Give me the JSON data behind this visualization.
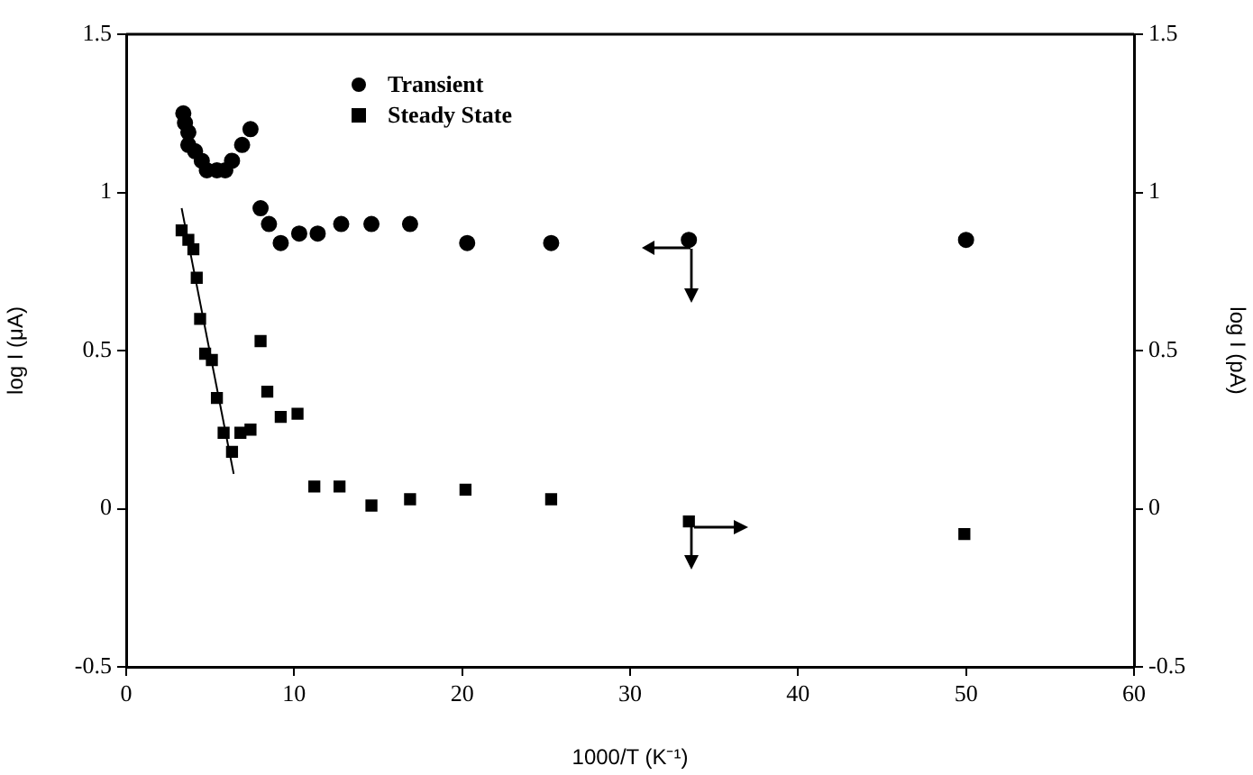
{
  "chart_data": {
    "type": "scatter",
    "xlabel": "1000/T (K⁻¹)",
    "ylabel": "log I (μA)",
    "y2label": "log I (pA)",
    "xlim": [
      0,
      60
    ],
    "xticks": [
      0,
      10,
      20,
      30,
      40,
      50,
      60
    ],
    "ylim": [
      -0.5,
      1.5
    ],
    "yticks": [
      -0.5,
      0,
      0.5,
      1,
      1.5
    ],
    "y2lim": [
      -0.5,
      1.5
    ],
    "y2ticks": [
      -0.5,
      0,
      0.5,
      1,
      1.5
    ],
    "grid": false,
    "legend": "top left",
    "series": [
      {
        "name": "Transient",
        "type": "scatter",
        "marker": "circle",
        "color": "#000000",
        "x": [
          3.4,
          3.5,
          3.7,
          3.7,
          4.1,
          4.5,
          4.8,
          5.4,
          5.9,
          6.3,
          6.9,
          7.4,
          8.0,
          8.5,
          9.2,
          10.3,
          11.4,
          12.8,
          14.6,
          16.9,
          20.3,
          25.3,
          33.5,
          50.0
        ],
        "values": [
          1.25,
          1.22,
          1.19,
          1.15,
          1.13,
          1.1,
          1.07,
          1.07,
          1.07,
          1.1,
          1.15,
          1.2,
          0.95,
          0.9,
          0.84,
          0.87,
          0.87,
          0.9,
          0.9,
          0.9,
          0.84,
          0.84,
          0.85,
          0.85
        ]
      },
      {
        "name": "Steady State",
        "type": "scatter",
        "marker": "square",
        "color": "#000000",
        "x": [
          3.3,
          3.7,
          4.0,
          4.2,
          4.4,
          4.7,
          5.1,
          5.4,
          5.8,
          6.3,
          6.8,
          7.4,
          8.0,
          8.4,
          9.2,
          10.2,
          11.2,
          12.7,
          14.6,
          16.9,
          20.2,
          25.3,
          33.5,
          49.9
        ],
        "values": [
          0.88,
          0.85,
          0.82,
          0.73,
          0.6,
          0.49,
          0.47,
          0.35,
          0.24,
          0.18,
          0.24,
          0.25,
          0.53,
          0.37,
          0.29,
          0.3,
          0.07,
          0.07,
          0.01,
          0.03,
          0.06,
          0.03,
          -0.04,
          -0.08
        ]
      },
      {
        "type": "line",
        "color": "#000000",
        "x": [
          3.3,
          6.4
        ],
        "values": [
          0.95,
          0.11
        ]
      }
    ]
  }
}
